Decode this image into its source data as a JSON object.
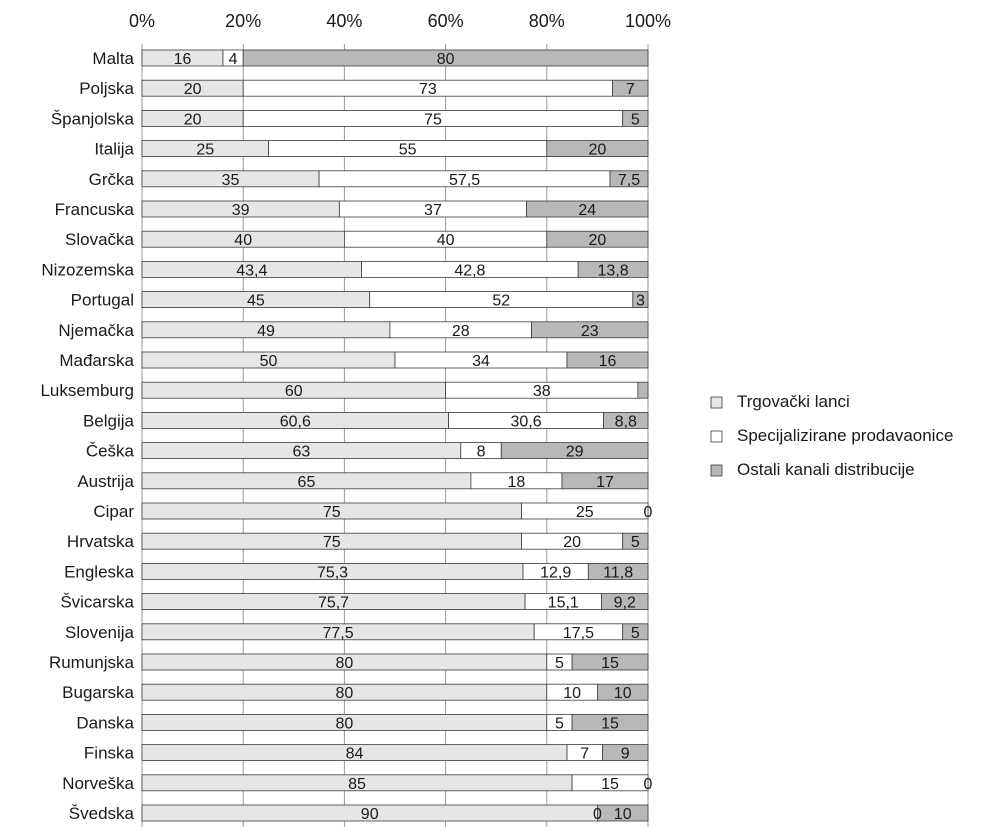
{
  "chart_data": {
    "type": "bar",
    "orientation": "horizontal",
    "stacked": "percent",
    "xlim": [
      0,
      100
    ],
    "x_ticks": [
      "0%",
      "20%",
      "40%",
      "60%",
      "80%",
      "100%"
    ],
    "grid": true,
    "legend_position": "right",
    "categories": [
      "Malta",
      "Poljska",
      "Španjolska",
      "Italija",
      "Grčka",
      "Francuska",
      "Slovačka",
      "Nizozemska",
      "Portugal",
      "Njemačka",
      "Mađarska",
      "Luksemburg",
      "Belgija",
      "Češka",
      "Austrija",
      "Cipar",
      "Hrvatska",
      "Engleska",
      "Švicarska",
      "Slovenija",
      "Rumunjska",
      "Bugarska",
      "Danska",
      "Finska",
      "Norveška",
      "Švedska"
    ],
    "series": [
      {
        "name": "Trgovački lanci",
        "color": "#e6e6e6",
        "values": [
          16,
          20,
          20,
          25,
          35,
          39,
          40,
          43.4,
          45,
          49,
          50,
          60,
          60.6,
          63,
          65,
          75,
          75,
          75.3,
          75.7,
          77.5,
          80,
          80,
          80,
          84,
          85,
          90
        ],
        "labels": [
          "16",
          "20",
          "20",
          "25",
          "35",
          "39",
          "40",
          "43,4",
          "45",
          "49",
          "50",
          "60",
          "60,6",
          "63",
          "65",
          "75",
          "75",
          "75,3",
          "75,7",
          "77,5",
          "80",
          "80",
          "80",
          "84",
          "85",
          "90"
        ]
      },
      {
        "name": "Specijalizirane prodavaonice",
        "color": "#ffffff",
        "values": [
          4,
          73,
          75,
          55,
          57.5,
          37,
          40,
          42.8,
          52,
          28,
          34,
          38,
          30.6,
          8,
          18,
          25,
          20,
          12.9,
          15.1,
          17.5,
          5,
          10,
          5,
          7,
          15,
          0
        ],
        "labels": [
          "4",
          "73",
          "75",
          "55",
          "57,5",
          "37",
          "40",
          "42,8",
          "52",
          "28",
          "34",
          "38",
          "30,6",
          "8",
          "18",
          "25",
          "20",
          "12,9",
          "15,1",
          "17,5",
          "5",
          "10",
          "5",
          "7",
          "15",
          "0"
        ]
      },
      {
        "name": "Ostali kanali distribucije",
        "color": "#b8b8b8",
        "values": [
          80,
          7,
          5,
          20,
          7.5,
          24,
          20,
          13.8,
          3,
          23,
          16,
          2,
          8.8,
          29,
          17,
          0,
          5,
          11.8,
          9.2,
          5,
          15,
          10,
          15,
          9,
          0,
          10
        ],
        "labels": [
          "80",
          "7",
          "5",
          "20",
          "7,5",
          "24",
          "20",
          "13,8",
          "3",
          "23",
          "16",
          "",
          "8,8",
          "29",
          "17",
          "0",
          "5",
          "11,8",
          "9,2",
          "5",
          "15",
          "10",
          "15",
          "9",
          "0",
          "10"
        ]
      }
    ]
  }
}
